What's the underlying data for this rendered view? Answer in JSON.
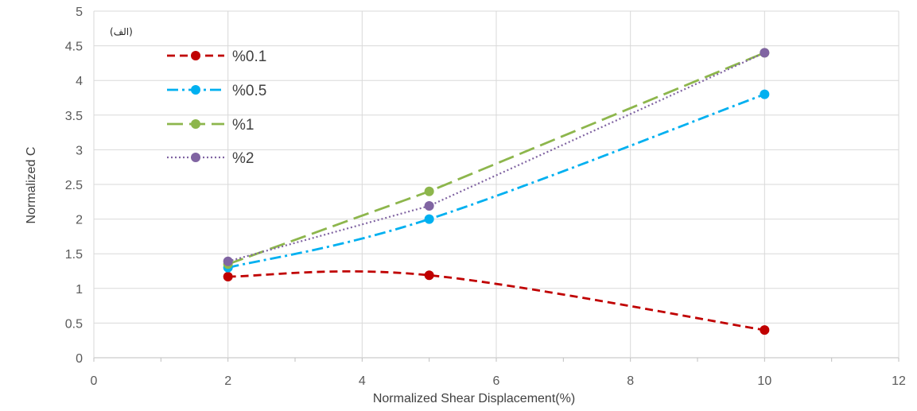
{
  "chart_data": {
    "type": "line",
    "title": "",
    "annotation": "(الف)",
    "xlabel": "Normalized Shear Displacement(%)",
    "ylabel": "Normalized C",
    "xlim": [
      0,
      12
    ],
    "ylim": [
      0,
      5
    ],
    "x_ticks": [
      "0",
      "2",
      "4",
      "6",
      "8",
      "10",
      "12"
    ],
    "y_ticks": [
      "0",
      "0.5",
      "1",
      "1.5",
      "2",
      "2.5",
      "3",
      "3.5",
      "4",
      "4.5",
      "5"
    ],
    "grid": true,
    "legend_position": "top-left",
    "series": [
      {
        "name": "%0.1",
        "color": "#C00000",
        "dash": "dashed",
        "smooth": true,
        "x": [
          2,
          5,
          10
        ],
        "y": [
          1.17,
          1.19,
          0.4
        ]
      },
      {
        "name": "%0.5",
        "color": "#00B0F0",
        "dash": "dash-dot",
        "smooth": true,
        "x": [
          2,
          5,
          10
        ],
        "y": [
          1.3,
          2.0,
          3.8
        ]
      },
      {
        "name": "%1",
        "color": "#8DB64C",
        "dash": "long-dash",
        "smooth": false,
        "x": [
          2,
          5,
          10
        ],
        "y": [
          1.35,
          2.4,
          4.4
        ]
      },
      {
        "name": "%2",
        "color": "#8064A2",
        "dash": "dotted",
        "smooth": false,
        "x": [
          2,
          5,
          10
        ],
        "y": [
          1.39,
          2.19,
          4.4
        ]
      }
    ]
  }
}
